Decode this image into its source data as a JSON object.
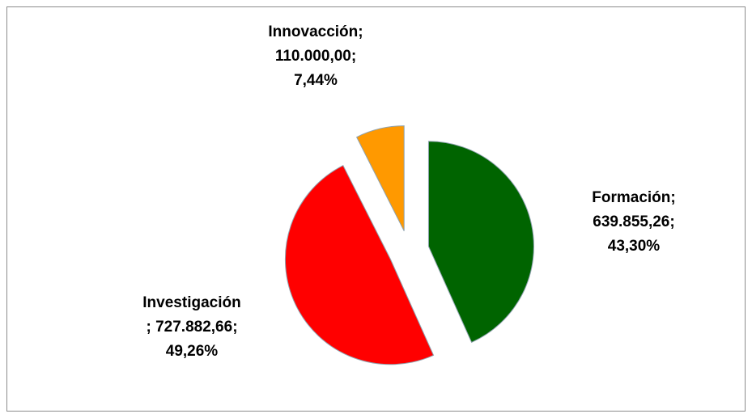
{
  "chart_data": {
    "type": "pie",
    "categories": [
      "Formación",
      "Investigación",
      "Innovacción"
    ],
    "values": [
      639855.26,
      727882.66,
      110000
    ],
    "value_labels": [
      "639.855,26",
      "727.882,66",
      "110.000,00"
    ],
    "percentages": [
      43.3,
      49.26,
      7.44
    ],
    "percentage_labels": [
      "43,30%",
      "49,26%",
      "7,44%"
    ],
    "label_separator": ";",
    "colors": [
      "#006400",
      "#ff0000",
      "#ff9900"
    ]
  }
}
